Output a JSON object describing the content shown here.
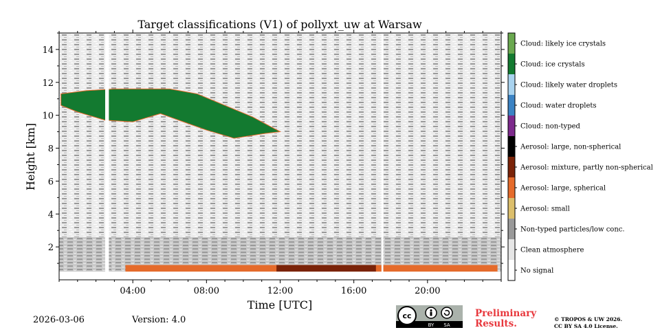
{
  "chart_data": {
    "type": "heatmap",
    "title": "Target classifications (V1) of pollyxt_uw at Warsaw",
    "xlabel": "Time [UTC]",
    "ylabel": "Height [km]",
    "xlim": [
      0,
      24
    ],
    "ylim": [
      0,
      15
    ],
    "x_ticks": [
      4,
      8,
      12,
      16,
      20
    ],
    "x_tick_labels": [
      "04:00",
      "08:00",
      "12:00",
      "16:00",
      "20:00"
    ],
    "y_ticks": [
      2,
      4,
      6,
      8,
      10,
      12,
      14
    ],
    "y_tick_labels": [
      "2",
      "4",
      "6",
      "8",
      "10",
      "12",
      "14"
    ],
    "legend": [
      {
        "label": "Cloud: likely ice crystals",
        "color": "#6aa84f"
      },
      {
        "label": "Cloud: ice crystals",
        "color": "#137a30"
      },
      {
        "label": "Cloud: likely water droplets",
        "color": "#a9d3ef"
      },
      {
        "label": "Cloud: water droplets",
        "color": "#3b83c4"
      },
      {
        "label": "Cloud: non-typed",
        "color": "#7d2a8c"
      },
      {
        "label": "Aerosol: large, non-spherical",
        "color": "#000000"
      },
      {
        "label": "Aerosol: mixture, partly non-spherical",
        "color": "#7a2308"
      },
      {
        "label": "Aerosol: large, spherical",
        "color": "#e56b2b"
      },
      {
        "label": "Aerosol: small",
        "color": "#dcbf6c"
      },
      {
        "label": "Non-typed particles/low conc.",
        "color": "#9a9a9a"
      },
      {
        "label": "Clean atmosphere",
        "color": "#e6e6e6"
      },
      {
        "label": "No signal",
        "color": "#ffffff"
      }
    ],
    "regions": [
      {
        "class": "Non-typed particles/low conc.",
        "t_start": 0,
        "t_end": 24,
        "h_bottom": 0.5,
        "h_top": 2.6
      },
      {
        "class": "Clean atmosphere",
        "t_start": 0,
        "t_end": 24,
        "h_bottom": 2.6,
        "h_top": 15
      },
      {
        "class": "Cloud: ice crystals",
        "t_start": 0.1,
        "t_end": 12.0,
        "h_bottom": 8.6,
        "h_top": 11.6
      },
      {
        "class": "Aerosol: large, spherical",
        "t_start": 3.6,
        "t_end": 23.8,
        "h_bottom": 0.5,
        "h_top": 0.9
      },
      {
        "class": "Aerosol: mixture, partly non-spherical",
        "t_start": 11.8,
        "t_end": 17.2,
        "h_bottom": 0.5,
        "h_top": 0.9
      }
    ],
    "data_gaps": [
      {
        "t_start": 2.5,
        "t_end": 2.7,
        "class": "No signal"
      },
      {
        "t_start": 17.5,
        "t_end": 17.6,
        "class": "No signal"
      }
    ]
  },
  "footer": {
    "date": "2026-03-06",
    "version": "Version: 4.0",
    "preliminary_line1": "Preliminary",
    "preliminary_line2": "Results.",
    "copyright_line1": "© TROPOS & UW 2026.",
    "copyright_line2": "CC BY SA 4.0 License."
  },
  "license_badge": {
    "cc": "cc",
    "by": "BY",
    "sa": "SA"
  },
  "colors": {
    "accent_red": "#e8383d"
  }
}
